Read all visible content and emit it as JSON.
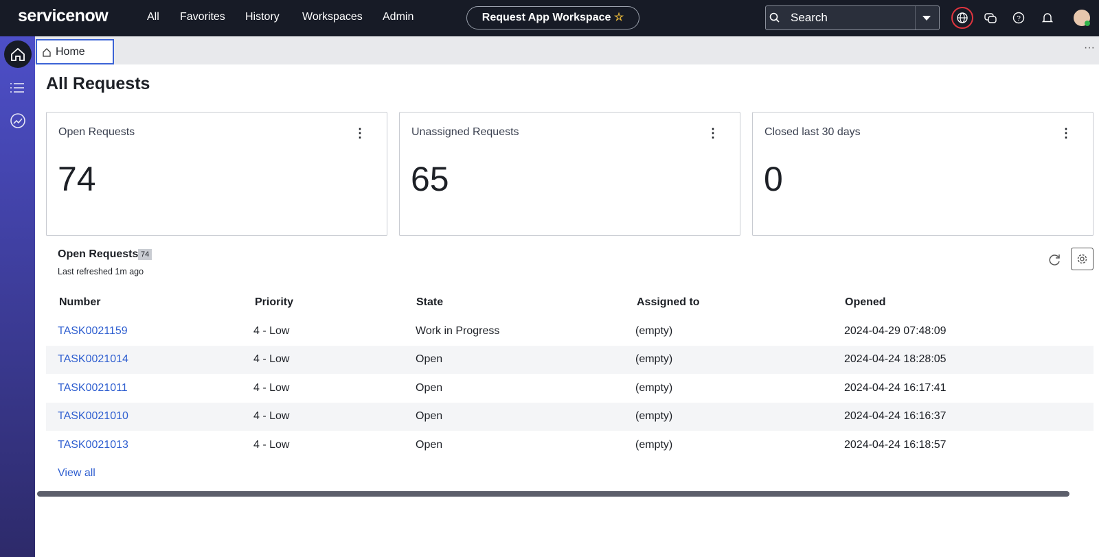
{
  "nav": {
    "brand": "servicenow",
    "links": [
      "All",
      "Favorites",
      "History",
      "Workspaces",
      "Admin"
    ],
    "workspace": "Request App Workspace",
    "search": "Search"
  },
  "tab": "Home",
  "page_title": "All Requests",
  "cards": [
    {
      "title": "Open Requests",
      "value": 74
    },
    {
      "title": "Unassigned Requests",
      "value": 65
    },
    {
      "title": "Closed last 30 days",
      "value": 0
    }
  ],
  "list": {
    "title": "Open Requests",
    "count": 74,
    "refreshed": "Last refreshed 1m ago",
    "columns": [
      "Number",
      "Priority",
      "State",
      "Assigned to",
      "Opened"
    ],
    "rows": [
      [
        "TASK0021159",
        "4 - Low",
        "Work in Progress",
        "(empty)",
        "2024-04-29 07:48:09"
      ],
      [
        "TASK0021014",
        "4 - Low",
        "Open",
        "(empty)",
        "2024-04-24 18:28:05"
      ],
      [
        "TASK0021011",
        "4 - Low",
        "Open",
        "(empty)",
        "2024-04-24 16:17:41"
      ],
      [
        "TASK0021010",
        "4 - Low",
        "Open",
        "(empty)",
        "2024-04-24 16:16:37"
      ],
      [
        "TASK0021013",
        "4 - Low",
        "Open",
        "(empty)",
        "2024-04-24 16:18:57"
      ]
    ],
    "view_all": "View all"
  }
}
